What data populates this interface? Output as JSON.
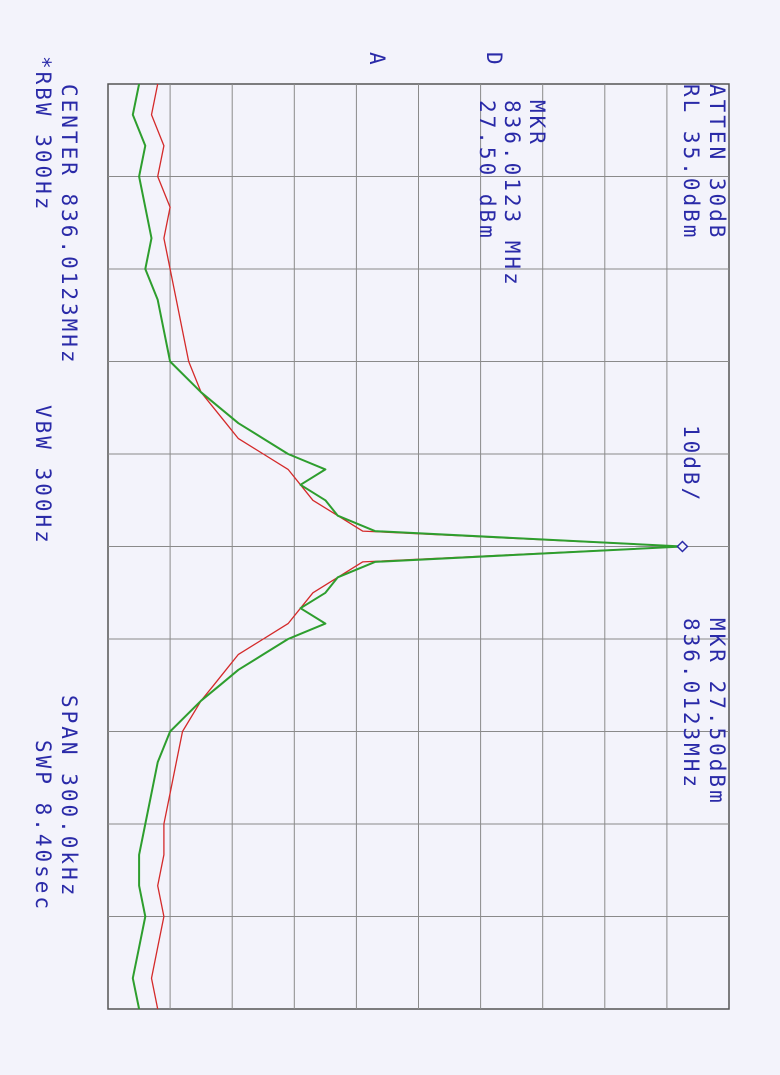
{
  "header": {
    "atten": "ATTEN 30dB",
    "ref_level": "RL 35.0dBm",
    "scale": "10dB/",
    "marker_top": "MKR 27.50dBm",
    "marker_top_freq": "836.0123MHz"
  },
  "marker_box": {
    "label": "MKR",
    "freq": "836.0123 MHz",
    "level": "27.50 dBm"
  },
  "trace_labels": {
    "a": "A",
    "b": "D"
  },
  "footer": {
    "center": "CENTER 836.0123MHz",
    "span": "SPAN 300.0kHz",
    "rbw": "*RBW 300Hz",
    "vbw": "VBW 300Hz",
    "sweep": "SWP 8.40sec"
  },
  "chart_data": {
    "type": "line",
    "x_unit": "kHz offset from center",
    "y_unit": "dBm",
    "xlim": [
      -150,
      150
    ],
    "ylim": [
      -65,
      35
    ],
    "grid": true,
    "series": [
      {
        "color": "#d42a2a",
        "x": [
          -150,
          -140,
          -130,
          -120,
          -110,
          -100,
          -90,
          -80,
          -70,
          -60,
          -50,
          -45,
          -40,
          -35,
          -30,
          -25,
          -20,
          -15,
          -10,
          -5,
          0,
          5,
          10,
          15,
          20,
          25,
          30,
          35,
          40,
          45,
          50,
          60,
          70,
          80,
          90,
          100,
          110,
          120,
          130,
          140,
          150
        ],
        "y": [
          -57,
          -58,
          -56,
          -57,
          -55,
          -56,
          -55,
          -54,
          -53,
          -52,
          -50,
          -48,
          -46,
          -44,
          -40,
          -36,
          -34,
          -32,
          -28,
          -24,
          27.5,
          -24,
          -28,
          -32,
          -34,
          -36,
          -40,
          -44,
          -46,
          -48,
          -50,
          -53,
          -54,
          -55,
          -56,
          -56,
          -57,
          -56,
          -57,
          -58,
          -57
        ]
      },
      {
        "color": "#2e9e2e",
        "x": [
          -150,
          -140,
          -130,
          -120,
          -110,
          -100,
          -90,
          -80,
          -70,
          -60,
          -50,
          -45,
          -40,
          -35,
          -30,
          -25,
          -20,
          -15,
          -10,
          -5,
          0,
          5,
          10,
          15,
          20,
          25,
          30,
          35,
          40,
          45,
          50,
          60,
          70,
          80,
          90,
          100,
          110,
          120,
          130,
          140,
          150
        ],
        "y": [
          -60,
          -61,
          -59,
          -60,
          -59,
          -58,
          -59,
          -57,
          -56,
          -55,
          -50,
          -47,
          -44,
          -40,
          -36,
          -30,
          -34,
          -30,
          -28,
          -22,
          27.5,
          -22,
          -28,
          -30,
          -34,
          -30,
          -36,
          -40,
          -44,
          -47,
          -50,
          -55,
          -57,
          -58,
          -59,
          -60,
          -60,
          -59,
          -60,
          -61,
          -60
        ]
      }
    ],
    "marker": {
      "x": 0,
      "y": 27.5
    }
  }
}
